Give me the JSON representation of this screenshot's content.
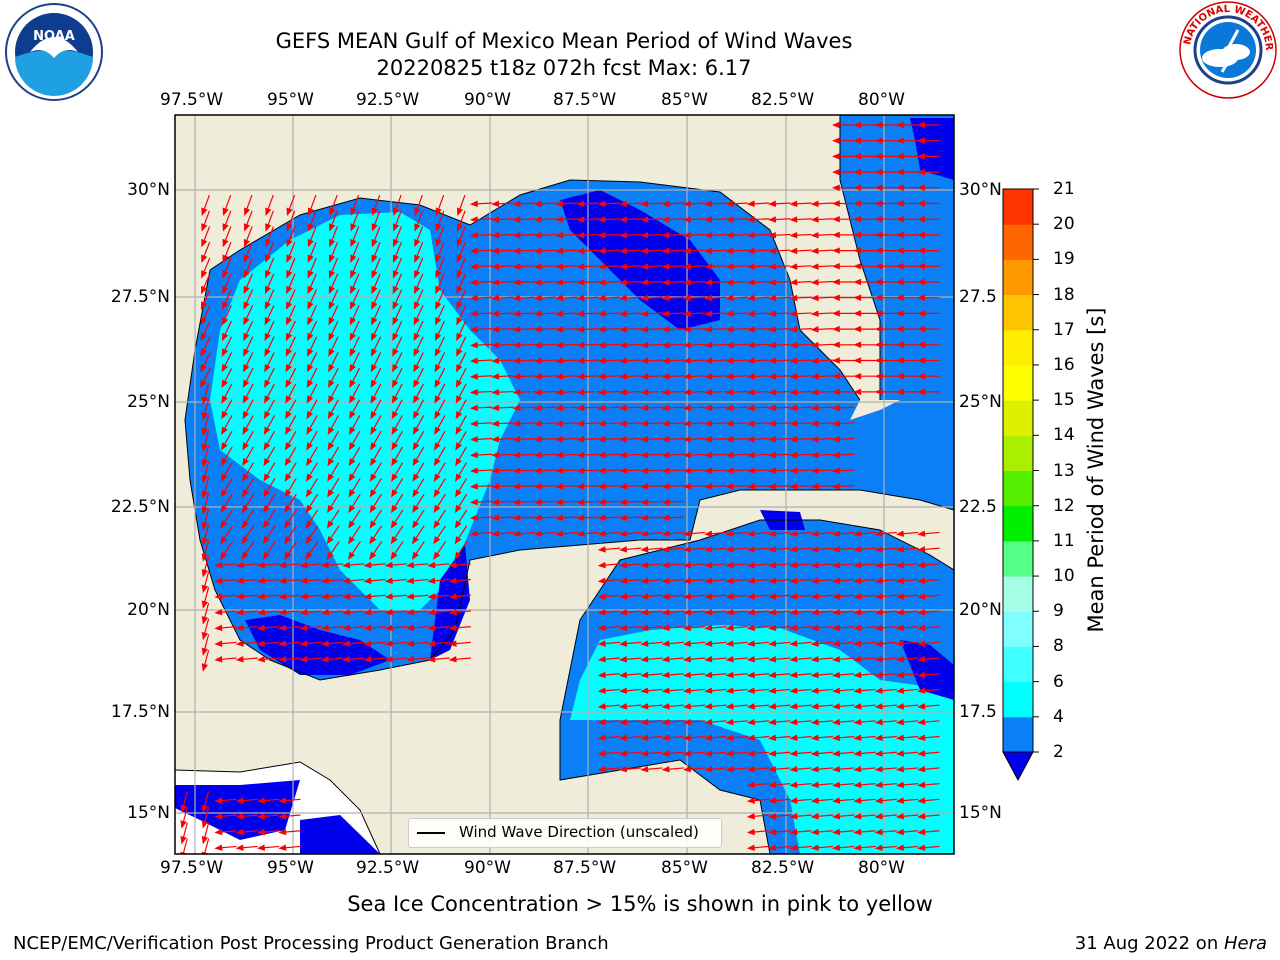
{
  "title": {
    "line1": "GEFS MEAN Gulf of Mexico Mean Period of Wind Waves",
    "line2": "20220825 t18z 072h fcst   Max: 6.17"
  },
  "axes": {
    "lon_ticks": [
      "97.5°W",
      "95°W",
      "92.5°W",
      "90°W",
      "87.5°W",
      "85°W",
      "82.5°W",
      "80°W"
    ],
    "lat_ticks_left": [
      "30°N",
      "27.5°N",
      "25°N",
      "22.5°N",
      "20°N",
      "17.5°N",
      "15°N"
    ],
    "lat_ticks_right": [
      "30°N",
      "27.5",
      "25°N",
      "22.5",
      "20°N",
      "17.5",
      "15°N"
    ]
  },
  "colorbar": {
    "label": "Mean Period of Wind Waves [s]",
    "ticks": [
      "2",
      "4",
      "6",
      "8",
      "9",
      "10",
      "11",
      "12",
      "13",
      "14",
      "15",
      "16",
      "17",
      "18",
      "19",
      "20",
      "21"
    ],
    "colors": [
      "#0a7ff6",
      "#00ffff",
      "#40ffff",
      "#7fffff",
      "#a8ffe8",
      "#55ff88",
      "#00ee00",
      "#55ee00",
      "#aaee00",
      "#ddf000",
      "#ffff00",
      "#ffee00",
      "#ffc400",
      "#ff9900",
      "#ff6600",
      "#ff3300",
      "#ff0000"
    ]
  },
  "legend": {
    "label": "Wind Wave Direction (unscaled)"
  },
  "note": "Sea Ice Concentration > 15% is shown in pink to yellow",
  "footer": {
    "left": "NCEP/EMC/Verification Post Processing Product Generation Branch",
    "date": "31 Aug 2022 on ",
    "machine": "Hera"
  },
  "logos": {
    "noaa_text": "NOAA",
    "nws_text": "NATIONAL WEATHER SERVICE"
  },
  "colors": {
    "land": "#efedd9",
    "deep_blue": "#0000ee",
    "mid_blue": "#0a7ff6",
    "cyan": "#00ffff",
    "arrow": "#ff0000"
  }
}
